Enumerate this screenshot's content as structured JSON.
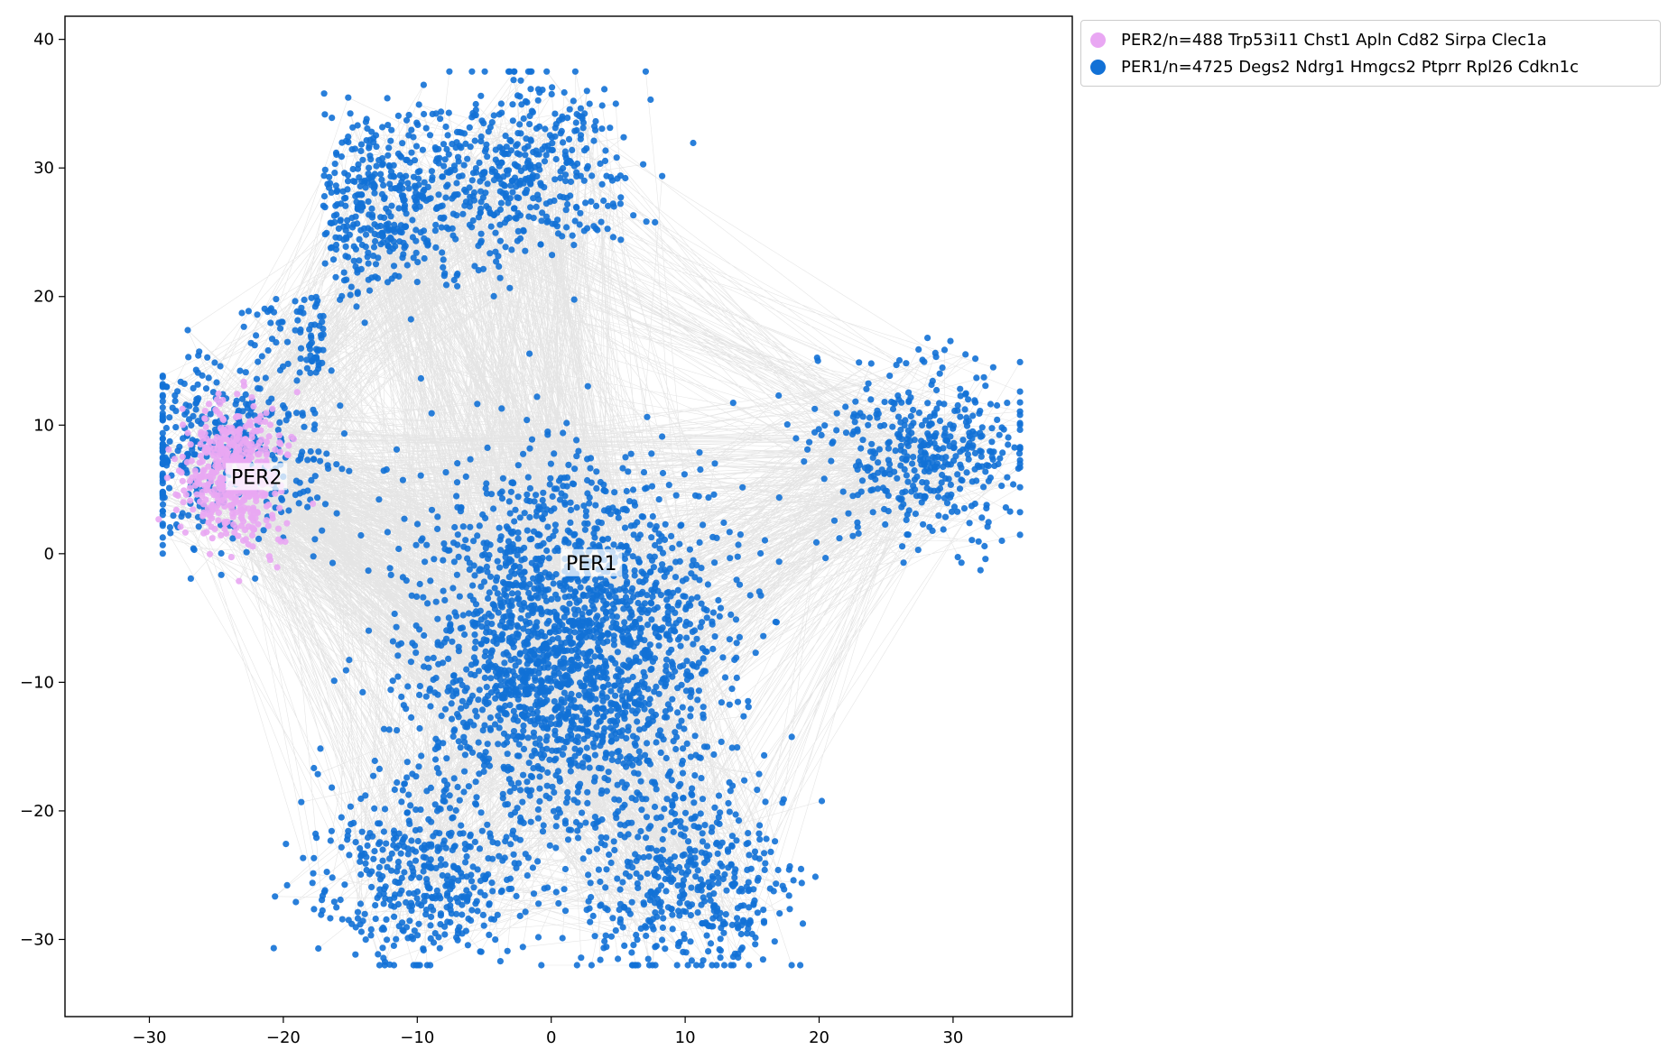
{
  "chart_data": {
    "type": "scatter",
    "title": "",
    "xlabel": "",
    "ylabel": "",
    "xlim": [
      -36.3,
      38.9
    ],
    "ylim": [
      -36.0,
      41.8
    ],
    "x_ticks": [
      -30,
      -20,
      -10,
      0,
      10,
      20,
      30
    ],
    "y_ticks": [
      -30,
      -20,
      -10,
      0,
      10,
      20,
      30,
      40
    ],
    "x_tick_labels": [
      "−30",
      "−20",
      "−10",
      "0",
      "10",
      "20",
      "30"
    ],
    "y_tick_labels": [
      "−30",
      "−20",
      "−10",
      "0",
      "10",
      "20",
      "30",
      "40"
    ],
    "grid": false,
    "legend_position": "outside-top-right",
    "edge_color": "#888888",
    "series": [
      {
        "name": "PER2/n=488 Trp53i11 Chst1 Apln Cd82 Sirpa Clec1a",
        "label": "PER2",
        "color": "#e9a7f3",
        "n": 488,
        "label_position": [
          -22.0,
          6.0
        ],
        "center": [
          -23.5,
          6.0
        ],
        "spread": [
          5.0,
          5.0
        ]
      },
      {
        "name": "PER1/n=4725 Degs2 Ndrg1 Hmgcs2 Ptprr Rpl26 Cdkn1c",
        "label": "PER1",
        "color": "#1271d6",
        "n": 4725,
        "label_position": [
          3.0,
          -0.7
        ],
        "center": [
          1.5,
          0.5
        ],
        "spread": [
          14.0,
          16.0
        ],
        "lobe_centers": [
          [
            -2.0,
            30.0
          ],
          [
            -13.0,
            27.0
          ],
          [
            28.0,
            8.0
          ],
          [
            -10.0,
            -25.0
          ],
          [
            10.0,
            -26.0
          ],
          [
            -24.0,
            8.0
          ]
        ]
      }
    ]
  }
}
